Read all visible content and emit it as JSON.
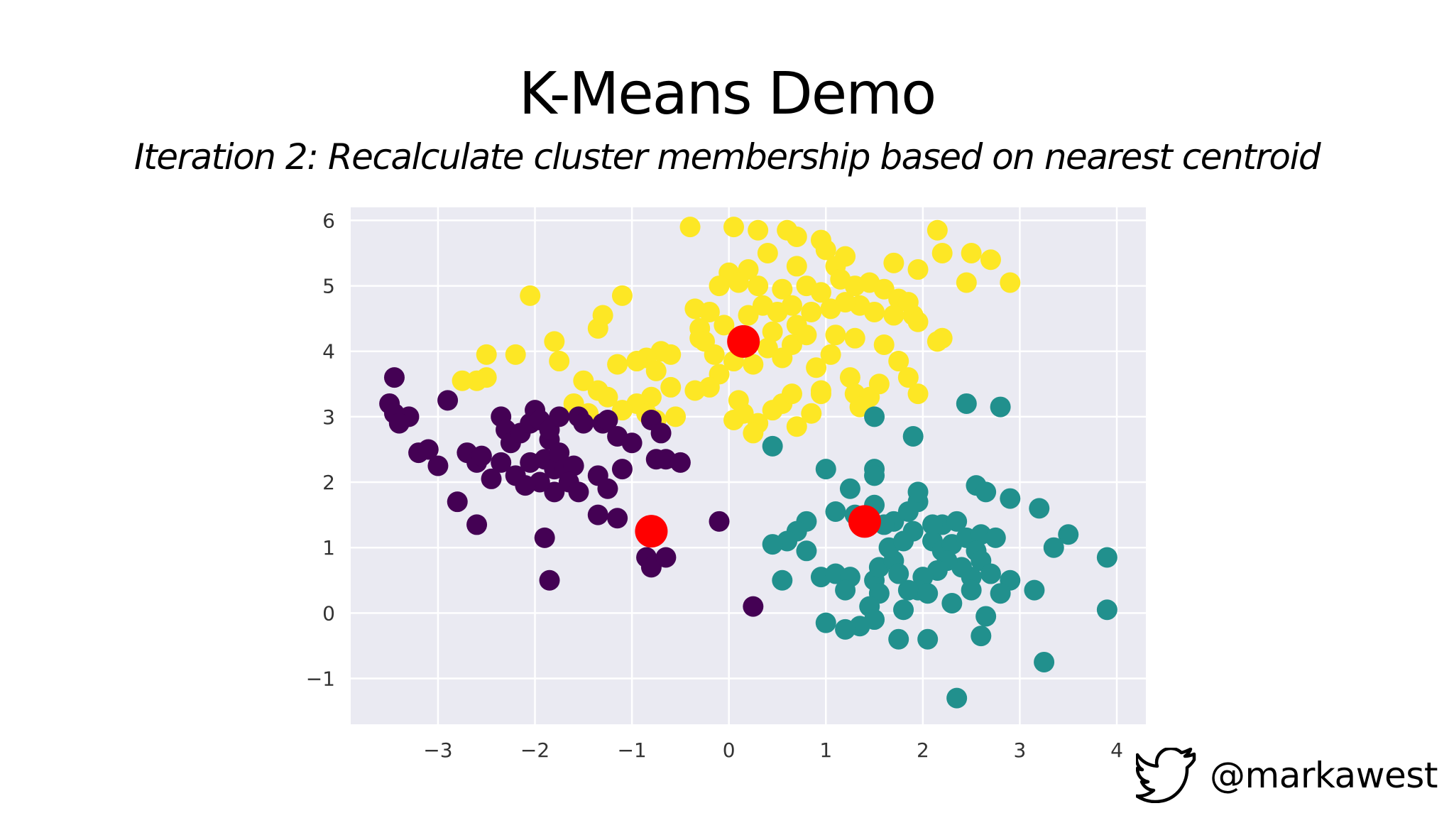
{
  "slide": {
    "title": "K-Means Demo",
    "subtitle": "Iteration 2: Recalculate cluster membership based on nearest centroid",
    "twitter_handle": "@markawest",
    "twitter_icon": "twitter-bird-icon"
  },
  "chart_data": {
    "type": "scatter",
    "title": "",
    "xlabel": "",
    "ylabel": "",
    "xlim": [
      -3.9,
      4.3
    ],
    "ylim": [
      -1.7,
      6.2
    ],
    "xticks": [
      -3,
      -2,
      -1,
      0,
      1,
      2,
      3,
      4
    ],
    "yticks": [
      -1,
      0,
      1,
      2,
      3,
      4,
      5,
      6
    ],
    "grid": true,
    "colors": {
      "background": "#eaeaf2",
      "grid": "#ffffff",
      "cluster_purple": "#440154",
      "cluster_teal": "#21908d",
      "cluster_yellow": "#fde725",
      "centroid": "#ff0000"
    },
    "series": [
      {
        "color": "#fde725",
        "points": [
          [
            -0.4,
            5.9
          ],
          [
            0.05,
            5.9
          ],
          [
            0.3,
            5.85
          ],
          [
            0.6,
            5.85
          ],
          [
            0.7,
            5.75
          ],
          [
            0.95,
            5.7
          ],
          [
            1.0,
            5.55
          ],
          [
            2.15,
            5.85
          ],
          [
            2.2,
            5.5
          ],
          [
            2.5,
            5.5
          ],
          [
            2.7,
            5.4
          ],
          [
            2.9,
            5.05
          ],
          [
            2.45,
            5.05
          ],
          [
            1.95,
            5.25
          ],
          [
            1.7,
            5.35
          ],
          [
            1.2,
            5.45
          ],
          [
            1.1,
            5.3
          ],
          [
            0.4,
            5.5
          ],
          [
            0.7,
            5.3
          ],
          [
            0.2,
            5.25
          ],
          [
            0.0,
            5.2
          ],
          [
            0.1,
            5.05
          ],
          [
            -0.1,
            5.0
          ],
          [
            0.3,
            5.0
          ],
          [
            0.55,
            4.95
          ],
          [
            0.8,
            5.0
          ],
          [
            1.3,
            5.0
          ],
          [
            1.45,
            5.05
          ],
          [
            1.6,
            4.95
          ],
          [
            1.75,
            4.8
          ],
          [
            1.85,
            4.75
          ],
          [
            1.9,
            4.55
          ],
          [
            1.95,
            4.45
          ],
          [
            1.7,
            4.55
          ],
          [
            1.5,
            4.6
          ],
          [
            1.35,
            4.7
          ],
          [
            1.2,
            4.75
          ],
          [
            1.05,
            4.65
          ],
          [
            0.85,
            4.6
          ],
          [
            0.65,
            4.7
          ],
          [
            0.5,
            4.6
          ],
          [
            0.35,
            4.7
          ],
          [
            0.2,
            4.55
          ],
          [
            -0.35,
            4.65
          ],
          [
            -0.2,
            4.6
          ],
          [
            -0.3,
            4.35
          ],
          [
            -0.3,
            4.2
          ],
          [
            -0.05,
            4.4
          ],
          [
            0.45,
            4.3
          ],
          [
            0.7,
            4.4
          ],
          [
            0.65,
            4.1
          ],
          [
            0.55,
            3.9
          ],
          [
            0.4,
            4.05
          ],
          [
            0.25,
            3.8
          ],
          [
            0.05,
            3.85
          ],
          [
            -0.1,
            3.65
          ],
          [
            -0.2,
            3.45
          ],
          [
            -0.35,
            3.4
          ],
          [
            -0.6,
            3.95
          ],
          [
            -0.7,
            4.0
          ],
          [
            -0.85,
            3.9
          ],
          [
            -0.75,
            3.7
          ],
          [
            -0.6,
            3.45
          ],
          [
            -0.8,
            3.3
          ],
          [
            -0.95,
            3.2
          ],
          [
            -0.85,
            3.05
          ],
          [
            -0.75,
            2.95
          ],
          [
            -0.55,
            3.0
          ],
          [
            -1.1,
            3.1
          ],
          [
            -1.25,
            3.3
          ],
          [
            -1.35,
            3.4
          ],
          [
            -1.5,
            3.55
          ],
          [
            -1.6,
            3.2
          ],
          [
            -1.75,
            3.85
          ],
          [
            -1.8,
            4.15
          ],
          [
            -2.05,
            4.85
          ],
          [
            -1.35,
            4.35
          ],
          [
            -1.3,
            4.55
          ],
          [
            -1.1,
            4.85
          ],
          [
            -1.15,
            3.8
          ],
          [
            -0.95,
            3.85
          ],
          [
            -2.2,
            3.95
          ],
          [
            -2.5,
            3.95
          ],
          [
            -2.5,
            3.6
          ],
          [
            -2.6,
            3.55
          ],
          [
            -2.75,
            3.55
          ],
          [
            -1.45,
            3.05
          ],
          [
            0.1,
            3.25
          ],
          [
            0.15,
            3.05
          ],
          [
            0.3,
            2.9
          ],
          [
            0.25,
            2.75
          ],
          [
            0.05,
            2.95
          ],
          [
            0.45,
            3.1
          ],
          [
            0.55,
            3.2
          ],
          [
            0.65,
            3.35
          ],
          [
            0.7,
            2.85
          ],
          [
            0.85,
            3.05
          ],
          [
            0.95,
            3.4
          ],
          [
            0.9,
            3.75
          ],
          [
            1.05,
            3.95
          ],
          [
            1.1,
            4.25
          ],
          [
            1.3,
            4.2
          ],
          [
            1.25,
            3.6
          ],
          [
            1.3,
            3.35
          ],
          [
            1.45,
            3.3
          ],
          [
            1.55,
            3.5
          ],
          [
            1.6,
            4.1
          ],
          [
            1.75,
            3.85
          ],
          [
            1.85,
            3.6
          ],
          [
            1.95,
            3.35
          ],
          [
            2.15,
            4.15
          ],
          [
            2.2,
            4.2
          ],
          [
            1.35,
            3.15
          ],
          [
            0.8,
            4.25
          ],
          [
            -0.15,
            3.95
          ],
          [
            -0.25,
            4.15
          ],
          [
            0.95,
            3.35
          ],
          [
            1.15,
            5.1
          ],
          [
            0.95,
            4.9
          ]
        ]
      },
      {
        "color": "#440154",
        "points": [
          [
            -3.45,
            3.6
          ],
          [
            -3.5,
            3.2
          ],
          [
            -3.45,
            3.05
          ],
          [
            -3.3,
            3.0
          ],
          [
            -3.4,
            2.9
          ],
          [
            -3.2,
            2.45
          ],
          [
            -3.0,
            2.25
          ],
          [
            -2.9,
            3.25
          ],
          [
            -2.8,
            1.7
          ],
          [
            -2.7,
            2.45
          ],
          [
            -2.6,
            2.3
          ],
          [
            -2.55,
            2.4
          ],
          [
            -2.6,
            1.35
          ],
          [
            -2.35,
            3.0
          ],
          [
            -2.3,
            2.8
          ],
          [
            -2.25,
            2.6
          ],
          [
            -2.35,
            2.3
          ],
          [
            -2.2,
            2.1
          ],
          [
            -2.15,
            2.75
          ],
          [
            -2.05,
            2.9
          ],
          [
            -2.0,
            3.1
          ],
          [
            -1.95,
            2.95
          ],
          [
            -1.85,
            2.65
          ],
          [
            -1.9,
            2.35
          ],
          [
            -1.8,
            2.2
          ],
          [
            -1.8,
            1.85
          ],
          [
            -1.95,
            2.0
          ],
          [
            -2.05,
            2.3
          ],
          [
            -1.85,
            2.8
          ],
          [
            -1.75,
            3.0
          ],
          [
            -1.75,
            2.45
          ],
          [
            -1.7,
            2.2
          ],
          [
            -1.6,
            2.25
          ],
          [
            -1.65,
            2.0
          ],
          [
            -1.55,
            3.0
          ],
          [
            -1.5,
            2.9
          ],
          [
            -1.3,
            2.9
          ],
          [
            -1.25,
            2.95
          ],
          [
            -1.15,
            2.7
          ],
          [
            -1.35,
            2.1
          ],
          [
            -1.25,
            1.9
          ],
          [
            -1.35,
            1.5
          ],
          [
            -1.15,
            1.45
          ],
          [
            -1.1,
            2.2
          ],
          [
            -1.0,
            2.6
          ],
          [
            -0.8,
            2.95
          ],
          [
            -0.7,
            2.75
          ],
          [
            -0.75,
            2.35
          ],
          [
            -0.65,
            2.35
          ],
          [
            -0.5,
            2.3
          ],
          [
            -0.85,
            0.85
          ],
          [
            -0.8,
            0.7
          ],
          [
            -0.65,
            0.85
          ],
          [
            -1.9,
            1.15
          ],
          [
            -1.85,
            0.5
          ],
          [
            -0.1,
            1.4
          ],
          [
            0.25,
            0.1
          ],
          [
            -3.1,
            2.5
          ],
          [
            -2.45,
            2.05
          ],
          [
            -2.1,
            1.95
          ],
          [
            -1.55,
            1.85
          ]
        ]
      },
      {
        "color": "#21908d",
        "points": [
          [
            1.5,
            3.0
          ],
          [
            1.9,
            2.7
          ],
          [
            2.45,
            3.2
          ],
          [
            2.8,
            3.15
          ],
          [
            0.45,
            2.55
          ],
          [
            1.0,
            2.2
          ],
          [
            1.5,
            2.2
          ],
          [
            1.5,
            2.1
          ],
          [
            1.25,
            1.9
          ],
          [
            1.1,
            1.55
          ],
          [
            1.3,
            1.5
          ],
          [
            1.5,
            1.65
          ],
          [
            1.7,
            1.4
          ],
          [
            1.85,
            1.55
          ],
          [
            1.95,
            1.7
          ],
          [
            1.95,
            1.85
          ],
          [
            2.2,
            1.35
          ],
          [
            2.35,
            1.4
          ],
          [
            2.55,
            1.95
          ],
          [
            2.65,
            1.85
          ],
          [
            2.9,
            1.75
          ],
          [
            3.2,
            1.6
          ],
          [
            3.5,
            1.2
          ],
          [
            3.35,
            1.0
          ],
          [
            3.9,
            0.85
          ],
          [
            3.15,
            0.35
          ],
          [
            3.9,
            0.05
          ],
          [
            3.25,
            -0.75
          ],
          [
            2.35,
            -1.3
          ],
          [
            0.8,
            1.4
          ],
          [
            0.7,
            1.25
          ],
          [
            0.6,
            1.1
          ],
          [
            0.45,
            1.05
          ],
          [
            0.55,
            0.5
          ],
          [
            0.8,
            0.95
          ],
          [
            0.95,
            0.55
          ],
          [
            1.1,
            0.6
          ],
          [
            1.25,
            0.55
          ],
          [
            1.2,
            0.35
          ],
          [
            1.5,
            0.5
          ],
          [
            1.55,
            0.7
          ],
          [
            1.7,
            0.8
          ],
          [
            1.65,
            1.0
          ],
          [
            1.8,
            1.1
          ],
          [
            1.9,
            1.25
          ],
          [
            2.1,
            1.1
          ],
          [
            2.2,
            0.95
          ],
          [
            2.3,
            1.05
          ],
          [
            2.45,
            1.15
          ],
          [
            2.6,
            1.2
          ],
          [
            2.75,
            1.15
          ],
          [
            2.55,
            0.95
          ],
          [
            2.6,
            0.8
          ],
          [
            2.7,
            0.6
          ],
          [
            2.5,
            0.55
          ],
          [
            2.4,
            0.7
          ],
          [
            2.25,
            0.8
          ],
          [
            2.15,
            0.65
          ],
          [
            2.0,
            0.55
          ],
          [
            1.95,
            0.35
          ],
          [
            1.85,
            0.35
          ],
          [
            1.75,
            0.6
          ],
          [
            1.55,
            0.3
          ],
          [
            1.45,
            0.1
          ],
          [
            1.5,
            -0.1
          ],
          [
            1.35,
            -0.2
          ],
          [
            1.2,
            -0.25
          ],
          [
            1.0,
            -0.15
          ],
          [
            1.75,
            -0.4
          ],
          [
            2.05,
            -0.4
          ],
          [
            2.6,
            -0.35
          ],
          [
            2.65,
            -0.05
          ],
          [
            2.3,
            0.15
          ],
          [
            2.05,
            0.3
          ],
          [
            1.8,
            0.05
          ],
          [
            2.5,
            0.35
          ],
          [
            2.9,
            0.5
          ],
          [
            2.1,
            1.35
          ],
          [
            1.6,
            1.35
          ],
          [
            2.8,
            0.3
          ]
        ]
      }
    ],
    "centroids": [
      [
        0.15,
        4.15
      ],
      [
        -0.8,
        1.25
      ],
      [
        1.4,
        1.4
      ]
    ]
  }
}
